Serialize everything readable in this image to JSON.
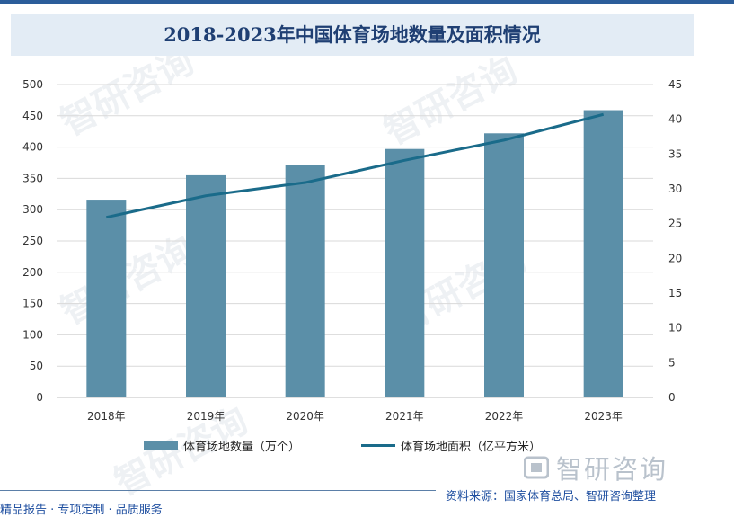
{
  "watermark": "智研咨询",
  "logo": {
    "text": "智研咨询",
    "icon": "zhiyan-logo-icon"
  },
  "source": "资料来源：国家体育总局、智研咨询整理",
  "footer_text": "精品报告 · 专项定制 · 品质服务",
  "colors": {
    "bar": "#5b8fa8",
    "line": "#1a6b8a",
    "title": "#1f3f73",
    "axis_text": "#333333",
    "grid": "#d9d9d9"
  },
  "chart_data": {
    "type": "bar",
    "title": "2018-2023年中国体育场地数量及面积情况",
    "categories": [
      "2018年",
      "2019年",
      "2020年",
      "2021年",
      "2022年",
      "2023年"
    ],
    "series": [
      {
        "name": "体育场地数量（万个）",
        "type": "bar",
        "axis": "left",
        "values": [
          316,
          355,
          372,
          397,
          422,
          459
        ]
      },
      {
        "name": "体育场地面积（亿平方米）",
        "type": "line",
        "axis": "right",
        "values": [
          25.9,
          29.0,
          30.9,
          34.1,
          37.0,
          40.7
        ]
      }
    ],
    "y_left": {
      "min": 0,
      "max": 500,
      "step": 50,
      "ticks": [
        "0",
        "50",
        "100",
        "150",
        "200",
        "250",
        "300",
        "350",
        "400",
        "450",
        "500"
      ]
    },
    "y_right": {
      "min": 0,
      "max": 45,
      "step": 5,
      "ticks": [
        "0",
        "5",
        "10",
        "15",
        "20",
        "25",
        "30",
        "35",
        "40",
        "45"
      ]
    },
    "grid": true,
    "legend_position": "bottom"
  }
}
